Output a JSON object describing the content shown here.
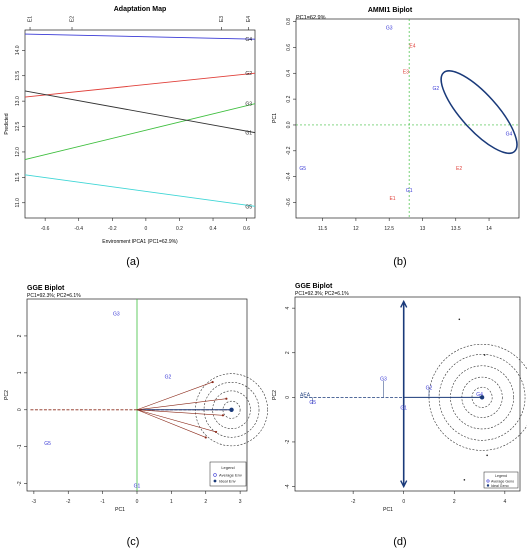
{
  "figure": {
    "panel_labels": [
      "(a)",
      "(b)",
      "(c)",
      "(d)"
    ]
  },
  "colors": {
    "blue": "#3a3ad6",
    "red": "#e0403a",
    "green": "#3fbf3f",
    "black": "#333333",
    "cyan": "#3fd6d6",
    "dark_blue": "#1a3a7a",
    "brown": "#8b2a1a",
    "dashed": "#333333"
  },
  "chart_data": [
    {
      "type": "line",
      "title": "Adaptation Map",
      "xlabel": "Environment IPCA1 (PC1=62.9%)",
      "ylabel": "Predicted",
      "xlim": [
        -0.72,
        0.65
      ],
      "ylim": [
        10.7,
        14.4
      ],
      "xticks": [
        -0.6,
        -0.4,
        -0.2,
        0.0,
        0.2,
        0.4,
        0.6
      ],
      "yticks": [
        11.0,
        11.5,
        12.0,
        12.5,
        13.0,
        13.5,
        14.0
      ],
      "top_axis_labels": [
        {
          "label": "E1",
          "x": -0.69
        },
        {
          "label": "E2",
          "x": -0.44
        },
        {
          "label": "E3",
          "x": 0.45
        },
        {
          "label": "E4",
          "x": 0.61
        }
      ],
      "series": [
        {
          "name": "G4",
          "x": [
            -0.72,
            0.65
          ],
          "y": [
            14.32,
            14.22
          ],
          "color": "blue"
        },
        {
          "name": "G2",
          "x": [
            -0.72,
            0.65
          ],
          "y": [
            13.08,
            13.55
          ],
          "color": "red"
        },
        {
          "name": "G3",
          "x": [
            -0.72,
            0.65
          ],
          "y": [
            11.85,
            12.95
          ],
          "color": "green"
        },
        {
          "name": "G1",
          "x": [
            -0.72,
            0.65
          ],
          "y": [
            13.2,
            12.38
          ],
          "color": "black"
        },
        {
          "name": "G5",
          "x": [
            -0.72,
            0.65
          ],
          "y": [
            11.55,
            10.93
          ],
          "color": "cyan"
        }
      ]
    },
    {
      "type": "scatter",
      "title": "AMMI1 Biplot",
      "annotation": "PC1=62.9%",
      "xlabel": "",
      "ylabel": "PC1",
      "xlim": [
        11.1,
        14.45
      ],
      "ylim": [
        -0.72,
        0.82
      ],
      "xticks": [
        11.5,
        12.0,
        12.5,
        13.0,
        13.5,
        14.0
      ],
      "yticks": [
        -0.6,
        -0.4,
        -0.2,
        0.0,
        0.2,
        0.4,
        0.6,
        0.8
      ],
      "reference_lines": {
        "x": 12.8,
        "y": 0.0
      },
      "genotypes": [
        {
          "label": "G1",
          "x": 12.8,
          "y": -0.52
        },
        {
          "label": "G2",
          "x": 13.2,
          "y": 0.27
        },
        {
          "label": "G3",
          "x": 12.5,
          "y": 0.74
        },
        {
          "label": "G4",
          "x": 14.3,
          "y": -0.08
        },
        {
          "label": "G5",
          "x": 11.2,
          "y": -0.35
        }
      ],
      "environments": [
        {
          "label": "E1",
          "x": 12.55,
          "y": -0.58
        },
        {
          "label": "E2",
          "x": 13.55,
          "y": -0.35
        },
        {
          "label": "E3",
          "x": 12.75,
          "y": 0.4
        },
        {
          "label": "E4",
          "x": 12.85,
          "y": 0.6
        }
      ],
      "ellipse": {
        "cx": 13.85,
        "cy": 0.1,
        "note": "enclosed G2 and G4"
      }
    },
    {
      "type": "scatter",
      "title": "GGE Biplot",
      "annotation": "PC1=92.3%; PC2=6.1%",
      "xlabel": "PC1",
      "ylabel": "PC2",
      "xlim": [
        -3.2,
        3.2
      ],
      "ylim": [
        -2.2,
        3.0
      ],
      "xticks": [
        -3,
        -2,
        -1,
        0,
        1,
        2,
        3
      ],
      "yticks": [
        -2,
        -1,
        0,
        1,
        2
      ],
      "genotypes": [
        {
          "label": "G1",
          "x": 0.0,
          "y": -2.1
        },
        {
          "label": "G2",
          "x": 0.9,
          "y": 0.85
        },
        {
          "label": "G3",
          "x": -0.6,
          "y": 2.55
        },
        {
          "label": "G5",
          "x": -2.6,
          "y": -0.95
        }
      ],
      "environment_vectors": [
        {
          "x": 2.2,
          "y": 0.75
        },
        {
          "x": 2.6,
          "y": 0.3
        },
        {
          "x": 2.5,
          "y": -0.15
        },
        {
          "x": 2.3,
          "y": -0.6
        },
        {
          "x": 2.0,
          "y": -0.75
        }
      ],
      "ideal_point": {
        "x": 2.75,
        "y": 0.0
      },
      "average_env_axis": {
        "from": [
          -3.1,
          0.0
        ],
        "to": [
          2.7,
          0.0
        ]
      },
      "circles_radii": [
        0.25,
        0.55,
        0.8,
        1.05
      ],
      "legend": {
        "title": "Legend",
        "items": [
          "Average Env",
          "Ideal Env"
        ],
        "position": "bottom-right"
      }
    },
    {
      "type": "scatter",
      "title": "GGE Biplot",
      "annotation": "PC1=92.3%; PC2=6.1%",
      "xlabel": "PC1",
      "ylabel": "PC2",
      "xlim": [
        -4.3,
        4.6
      ],
      "ylim": [
        -4.2,
        4.5
      ],
      "xticks": [
        -2,
        0,
        2,
        4
      ],
      "yticks": [
        -4,
        -2,
        0,
        2,
        4
      ],
      "axis_label": "AEA",
      "genotypes": [
        {
          "label": "G5",
          "x": -3.6,
          "y": -0.3
        },
        {
          "label": "G3",
          "x": -0.8,
          "y": 0.75
        },
        {
          "label": "G1",
          "x": 0.0,
          "y": -0.55
        },
        {
          "label": "G2",
          "x": 1.0,
          "y": 0.35
        },
        {
          "label": "G4",
          "x": 3.0,
          "y": 0.05
        }
      ],
      "markers": [
        {
          "x": 2.2,
          "y": 3.5
        },
        {
          "x": 3.2,
          "y": 1.9
        },
        {
          "x": 3.3,
          "y": -2.6
        },
        {
          "x": 2.4,
          "y": -3.7
        }
      ],
      "ideal_point": {
        "x": 3.1,
        "y": 0.0
      },
      "circles_radii": [
        0.4,
        0.8,
        1.25,
        1.7,
        2.1
      ],
      "legend": {
        "title": "Legend",
        "items": [
          "Average Geno",
          "Ideal Geno"
        ],
        "position": "bottom-right"
      }
    }
  ]
}
